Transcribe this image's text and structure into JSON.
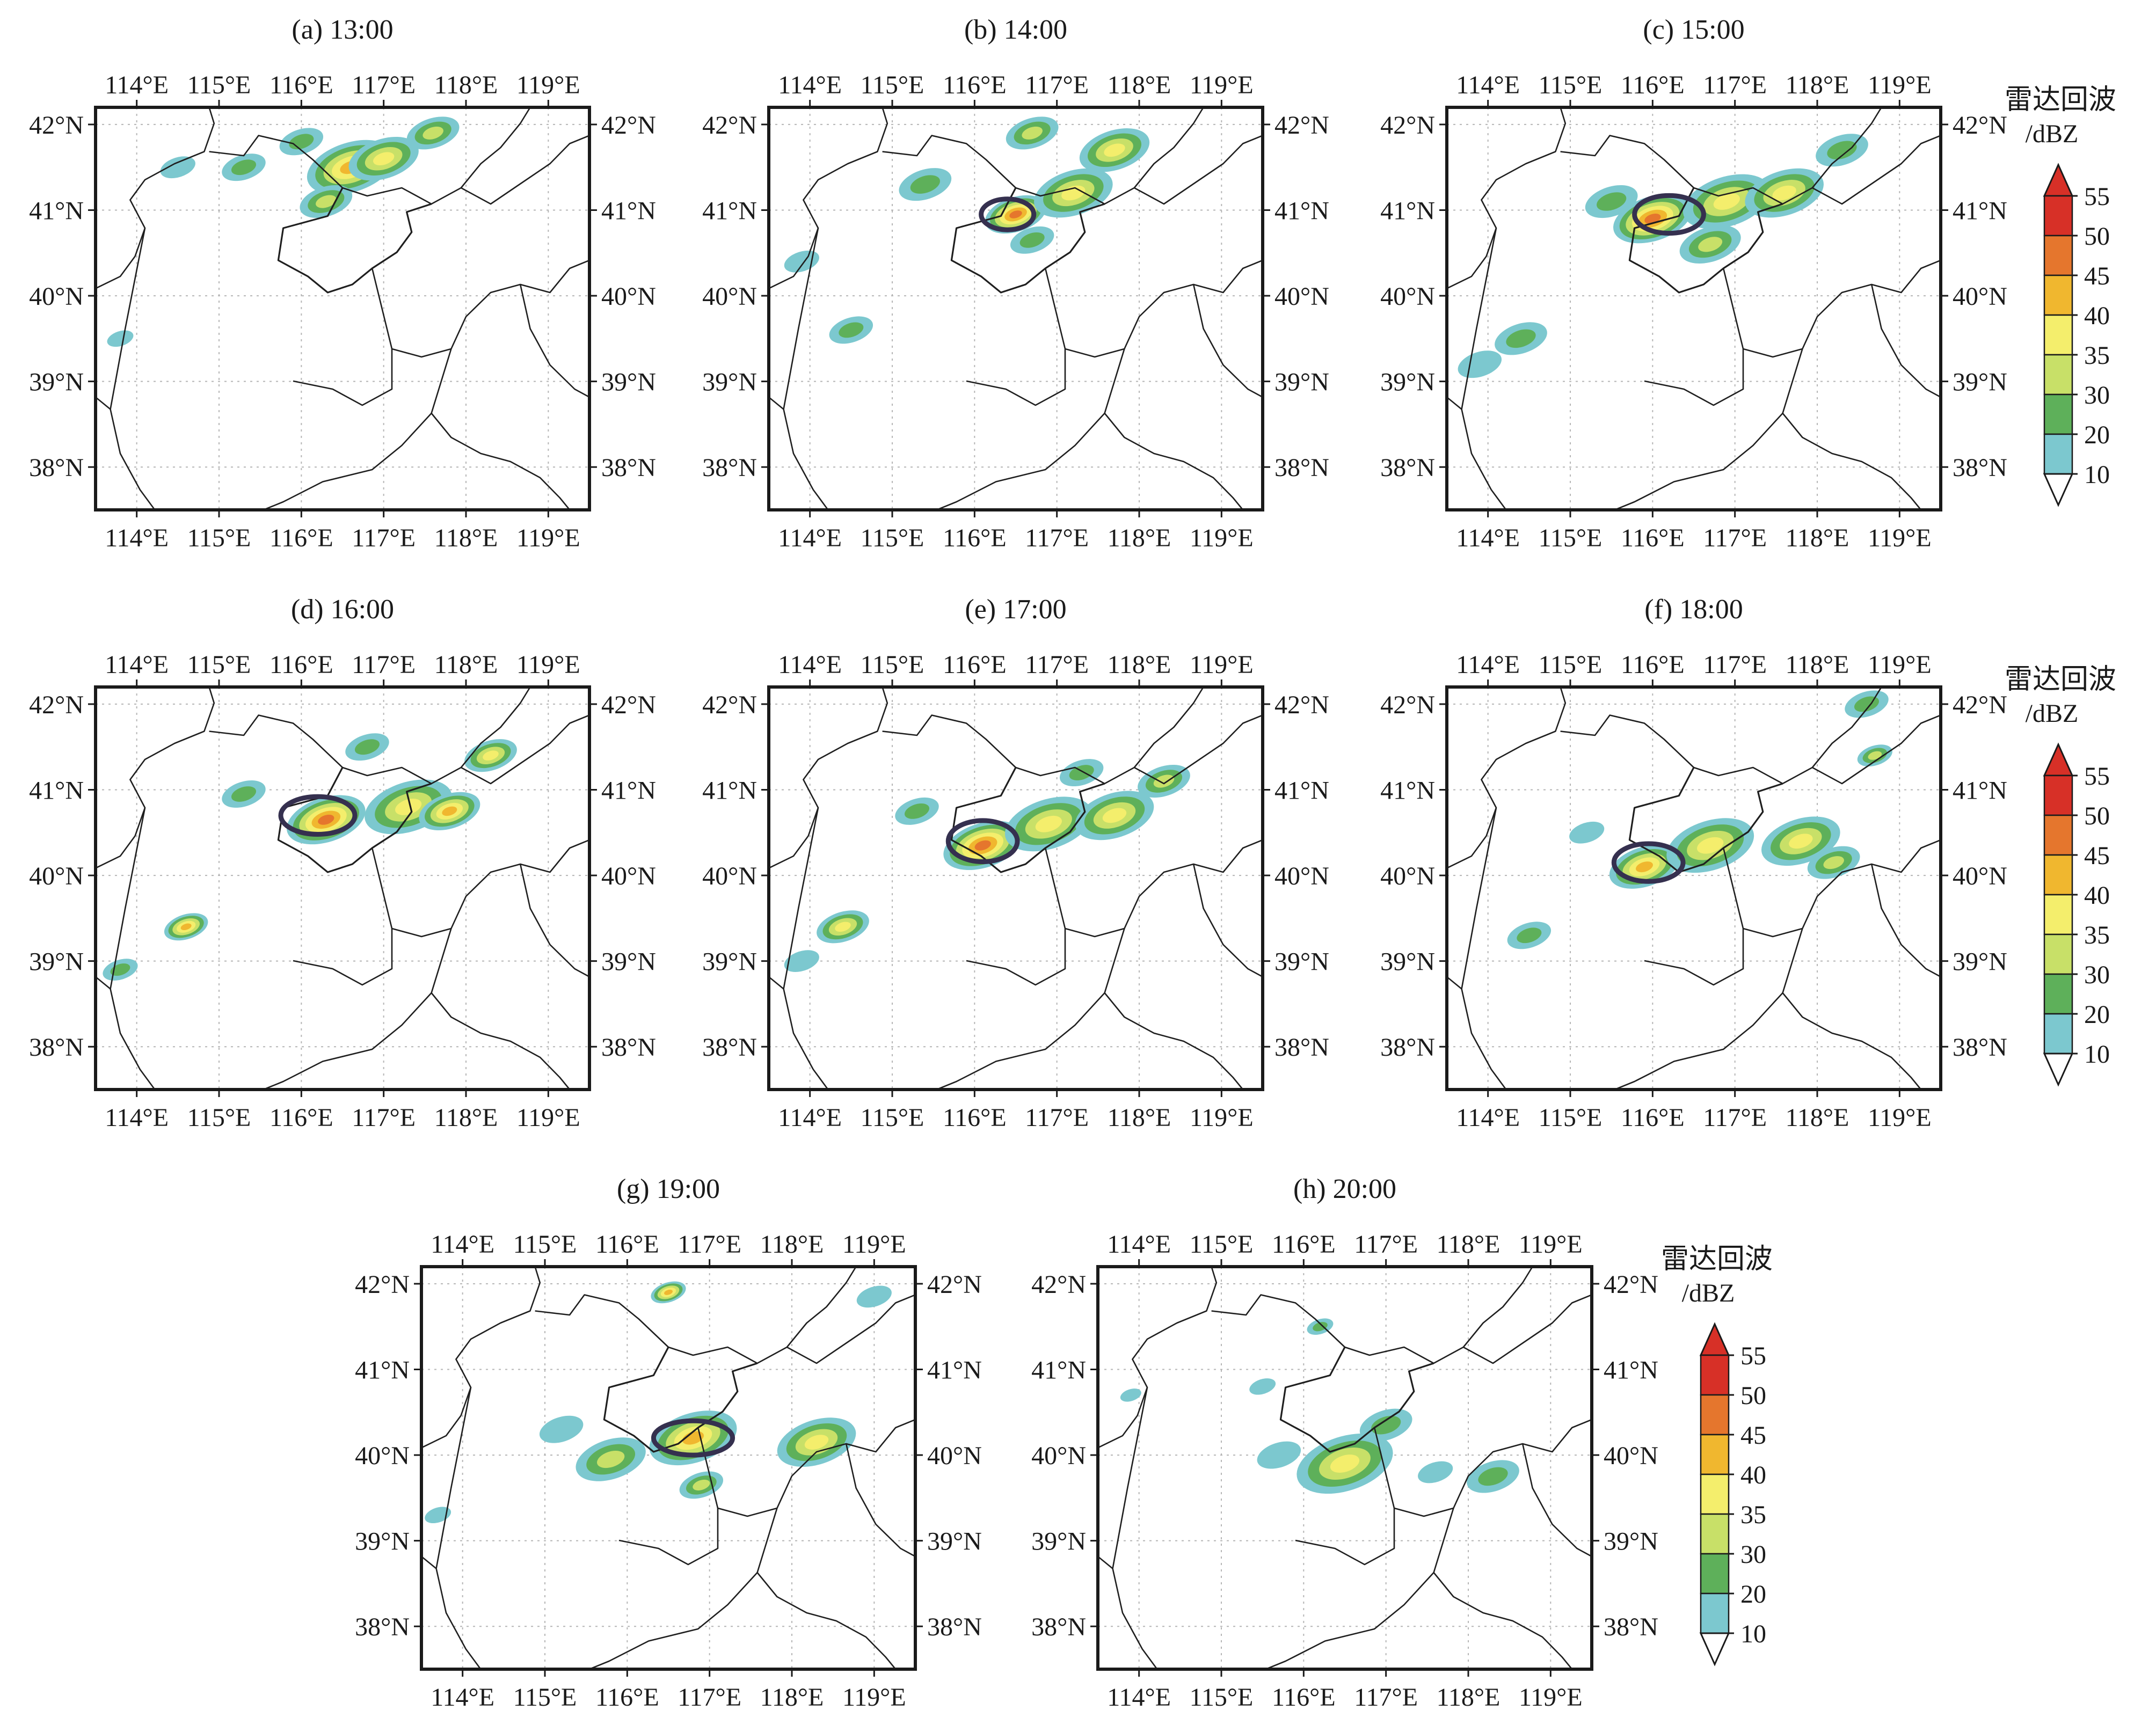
{
  "figure": {
    "colors": {
      "frame": "#1a1a1a",
      "outline": "#35304f",
      "grid": "#b5b5b5",
      "border": "#1f1f1f"
    },
    "lon_ticks": [
      "114°E",
      "115°E",
      "116°E",
      "117°E",
      "118°E",
      "119°E"
    ],
    "lat_ticks": [
      "42°N",
      "41°N",
      "40°N",
      "39°N",
      "38°N"
    ],
    "lon_values": [
      114,
      115,
      116,
      117,
      118,
      119
    ],
    "lat_values": [
      42,
      41,
      40,
      39,
      38
    ],
    "extent": {
      "lon_min": 113.5,
      "lon_max": 119.5,
      "lat_min": 37.5,
      "lat_max": 42.2
    }
  },
  "panels": [
    {
      "label": "(a) 13:00",
      "outline": null,
      "echoes": [
        {
          "lon": 116.6,
          "lat": 41.5,
          "level": 45,
          "size": 0.5
        },
        {
          "lon": 117.0,
          "lat": 41.6,
          "level": 40,
          "size": 0.4
        },
        {
          "lon": 116.3,
          "lat": 41.1,
          "level": 35,
          "size": 0.3
        },
        {
          "lon": 115.3,
          "lat": 41.5,
          "level": 30,
          "size": 0.25
        },
        {
          "lon": 116.0,
          "lat": 41.8,
          "level": 30,
          "size": 0.25
        },
        {
          "lon": 117.6,
          "lat": 41.9,
          "level": 35,
          "size": 0.3
        },
        {
          "lon": 114.5,
          "lat": 41.5,
          "level": 20,
          "size": 0.2
        },
        {
          "lon": 113.8,
          "lat": 39.5,
          "level": 20,
          "size": 0.15
        }
      ]
    },
    {
      "label": "(b) 14:00",
      "outline": {
        "lon": 116.4,
        "lat": 40.95,
        "rx": 0.32,
        "ry": 0.18
      },
      "echoes": [
        {
          "lon": 116.5,
          "lat": 40.95,
          "level": 50,
          "size": 0.35
        },
        {
          "lon": 117.2,
          "lat": 41.2,
          "level": 40,
          "size": 0.45
        },
        {
          "lon": 117.7,
          "lat": 41.7,
          "level": 40,
          "size": 0.4
        },
        {
          "lon": 116.7,
          "lat": 41.9,
          "level": 35,
          "size": 0.3
        },
        {
          "lon": 115.4,
          "lat": 41.3,
          "level": 30,
          "size": 0.3
        },
        {
          "lon": 114.5,
          "lat": 39.6,
          "level": 30,
          "size": 0.25
        },
        {
          "lon": 116.7,
          "lat": 40.65,
          "level": 30,
          "size": 0.25
        },
        {
          "lon": 113.9,
          "lat": 40.4,
          "level": 20,
          "size": 0.2
        }
      ]
    },
    {
      "label": "(c) 15:00",
      "outline": {
        "lon": 116.2,
        "lat": 40.95,
        "rx": 0.42,
        "ry": 0.22
      },
      "echoes": [
        {
          "lon": 116.0,
          "lat": 40.9,
          "level": 50,
          "size": 0.45
        },
        {
          "lon": 116.9,
          "lat": 41.1,
          "level": 40,
          "size": 0.5
        },
        {
          "lon": 117.6,
          "lat": 41.2,
          "level": 40,
          "size": 0.45
        },
        {
          "lon": 118.3,
          "lat": 41.7,
          "level": 30,
          "size": 0.3
        },
        {
          "lon": 116.7,
          "lat": 40.6,
          "level": 35,
          "size": 0.35
        },
        {
          "lon": 115.5,
          "lat": 41.1,
          "level": 30,
          "size": 0.3
        },
        {
          "lon": 114.4,
          "lat": 39.5,
          "level": 30,
          "size": 0.3
        },
        {
          "lon": 113.9,
          "lat": 39.2,
          "level": 20,
          "size": 0.25
        }
      ]
    },
    {
      "label": "(d) 16:00",
      "outline": {
        "lon": 116.2,
        "lat": 40.7,
        "rx": 0.45,
        "ry": 0.22
      },
      "echoes": [
        {
          "lon": 116.3,
          "lat": 40.65,
          "level": 50,
          "size": 0.45
        },
        {
          "lon": 117.3,
          "lat": 40.8,
          "level": 40,
          "size": 0.5
        },
        {
          "lon": 117.8,
          "lat": 40.75,
          "level": 45,
          "size": 0.35
        },
        {
          "lon": 118.3,
          "lat": 41.4,
          "level": 40,
          "size": 0.3
        },
        {
          "lon": 115.3,
          "lat": 40.95,
          "level": 30,
          "size": 0.25
        },
        {
          "lon": 114.6,
          "lat": 39.4,
          "level": 45,
          "size": 0.25
        },
        {
          "lon": 116.8,
          "lat": 41.5,
          "level": 30,
          "size": 0.25
        },
        {
          "lon": 113.8,
          "lat": 38.9,
          "level": 30,
          "size": 0.2
        }
      ]
    },
    {
      "label": "(e) 17:00",
      "outline": {
        "lon": 116.1,
        "lat": 40.4,
        "rx": 0.42,
        "ry": 0.24
      },
      "echoes": [
        {
          "lon": 116.1,
          "lat": 40.35,
          "level": 50,
          "size": 0.45
        },
        {
          "lon": 116.9,
          "lat": 40.6,
          "level": 40,
          "size": 0.5
        },
        {
          "lon": 117.7,
          "lat": 40.7,
          "level": 40,
          "size": 0.45
        },
        {
          "lon": 118.3,
          "lat": 41.1,
          "level": 35,
          "size": 0.3
        },
        {
          "lon": 115.3,
          "lat": 40.75,
          "level": 30,
          "size": 0.25
        },
        {
          "lon": 114.4,
          "lat": 39.4,
          "level": 40,
          "size": 0.3
        },
        {
          "lon": 117.3,
          "lat": 41.2,
          "level": 30,
          "size": 0.25
        },
        {
          "lon": 113.9,
          "lat": 39.0,
          "level": 20,
          "size": 0.2
        }
      ]
    },
    {
      "label": "(f) 18:00",
      "outline": {
        "lon": 115.95,
        "lat": 40.15,
        "rx": 0.42,
        "ry": 0.22
      },
      "echoes": [
        {
          "lon": 115.9,
          "lat": 40.1,
          "level": 45,
          "size": 0.4
        },
        {
          "lon": 116.7,
          "lat": 40.35,
          "level": 40,
          "size": 0.5
        },
        {
          "lon": 117.8,
          "lat": 40.4,
          "level": 40,
          "size": 0.45
        },
        {
          "lon": 118.2,
          "lat": 40.15,
          "level": 35,
          "size": 0.3
        },
        {
          "lon": 114.5,
          "lat": 39.3,
          "level": 30,
          "size": 0.25
        },
        {
          "lon": 118.6,
          "lat": 42.0,
          "level": 30,
          "size": 0.25
        },
        {
          "lon": 118.7,
          "lat": 41.4,
          "level": 35,
          "size": 0.2
        },
        {
          "lon": 115.2,
          "lat": 40.5,
          "level": 20,
          "size": 0.2
        }
      ]
    },
    {
      "label": "(g) 19:00",
      "outline": {
        "lon": 116.8,
        "lat": 40.2,
        "rx": 0.48,
        "ry": 0.2
      },
      "echoes": [
        {
          "lon": 116.8,
          "lat": 40.2,
          "level": 45,
          "size": 0.5
        },
        {
          "lon": 118.3,
          "lat": 40.15,
          "level": 40,
          "size": 0.45
        },
        {
          "lon": 115.8,
          "lat": 39.95,
          "level": 35,
          "size": 0.4
        },
        {
          "lon": 116.9,
          "lat": 39.65,
          "level": 35,
          "size": 0.25
        },
        {
          "lon": 116.5,
          "lat": 41.9,
          "level": 45,
          "size": 0.2
        },
        {
          "lon": 119.0,
          "lat": 41.85,
          "level": 20,
          "size": 0.2
        },
        {
          "lon": 115.2,
          "lat": 40.3,
          "level": 20,
          "size": 0.25
        },
        {
          "lon": 113.7,
          "lat": 39.3,
          "level": 20,
          "size": 0.15
        }
      ]
    },
    {
      "label": "(h) 20:00",
      "outline": null,
      "echoes": [
        {
          "lon": 116.5,
          "lat": 39.9,
          "level": 40,
          "size": 0.55
        },
        {
          "lon": 117.0,
          "lat": 40.35,
          "level": 30,
          "size": 0.3
        },
        {
          "lon": 118.3,
          "lat": 39.75,
          "level": 30,
          "size": 0.3
        },
        {
          "lon": 115.7,
          "lat": 40.0,
          "level": 20,
          "size": 0.25
        },
        {
          "lon": 116.2,
          "lat": 41.5,
          "level": 30,
          "size": 0.15
        },
        {
          "lon": 115.5,
          "lat": 40.8,
          "level": 20,
          "size": 0.15
        },
        {
          "lon": 113.9,
          "lat": 40.7,
          "level": 20,
          "size": 0.12
        },
        {
          "lon": 117.6,
          "lat": 39.8,
          "level": 20,
          "size": 0.2
        }
      ]
    }
  ],
  "colorbar": {
    "title_line1": "雷达回波",
    "title_line2": "/dBZ",
    "levels": [
      "55",
      "50",
      "45",
      "40",
      "35",
      "30",
      "20",
      "10"
    ],
    "colors": [
      "#d73027",
      "#e5762d",
      "#f0b72f",
      "#f4ee6c",
      "#c8e068",
      "#5eb05a",
      "#7cc8cf",
      "#ffffff"
    ]
  }
}
